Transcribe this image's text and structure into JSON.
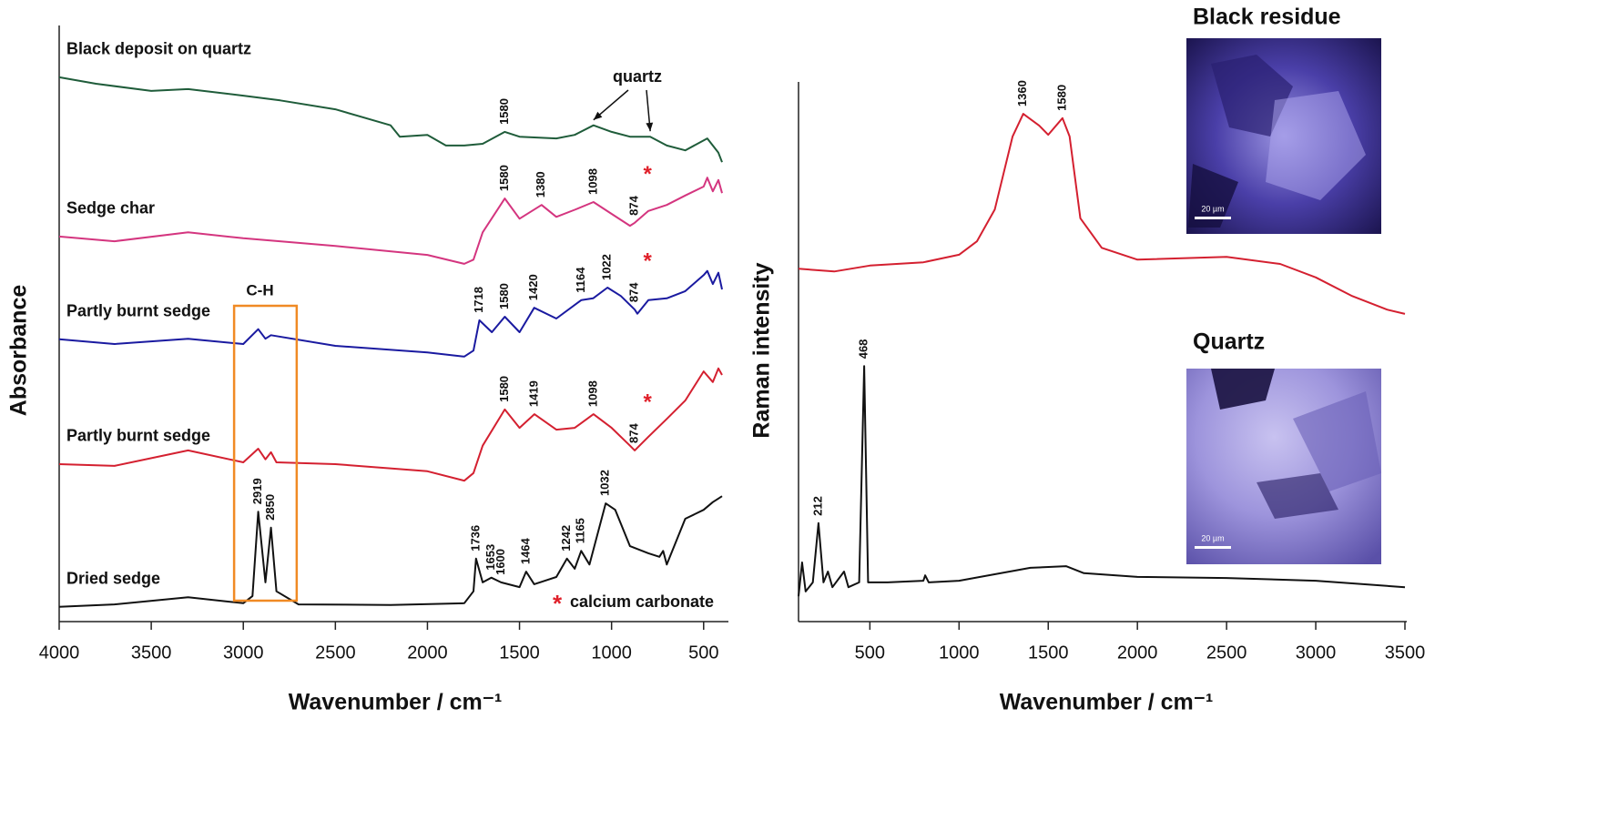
{
  "chart_data": [
    {
      "type": "line",
      "x_label": "Wavenumber / cm⁻¹",
      "y_label": "Absorbance",
      "xlim": [
        4000,
        400
      ],
      "xticks": [
        4000,
        3500,
        3000,
        2500,
        2000,
        1500,
        1000,
        500
      ],
      "ylim": [
        0,
        100
      ],
      "series": [
        {
          "name": "Black deposit on quartz",
          "color": "#1f5c3a",
          "x": [
            4000,
            3800,
            3500,
            3300,
            3000,
            2800,
            2500,
            2200,
            2150,
            2000,
            1900,
            1800,
            1700,
            1580,
            1500,
            1300,
            1200,
            1098,
            1000,
            900,
            790,
            700,
            600,
            480,
            420,
            400
          ],
          "values": [
            91.6,
            90.5,
            89.3,
            89.6,
            88.5,
            87.7,
            86.2,
            83.5,
            81.6,
            81.9,
            80.1,
            80.1,
            80.4,
            82.4,
            81.6,
            81.3,
            81.9,
            83.5,
            82.4,
            81.6,
            81.6,
            80.1,
            79.3,
            81.3,
            78.9,
            77.3
          ],
          "peaks": [
            1580
          ]
        },
        {
          "name": "Sedge char",
          "color": "#d4357f",
          "starred": true,
          "x": [
            4000,
            3700,
            3300,
            3000,
            2500,
            2000,
            1800,
            1750,
            1700,
            1580,
            1500,
            1380,
            1300,
            1200,
            1098,
            1000,
            900,
            874,
            800,
            700,
            600,
            500,
            480,
            450,
            420,
            400
          ],
          "values": [
            64.8,
            64.0,
            65.5,
            64.5,
            63.2,
            61.7,
            60.2,
            60.9,
            65.5,
            71.2,
            67.8,
            70.1,
            68.1,
            69.3,
            70.6,
            68.6,
            66.6,
            67.1,
            69.1,
            70.1,
            71.7,
            73.2,
            74.7,
            72.4,
            74.3,
            72.1
          ],
          "peaks": [
            1580,
            1380,
            1098,
            874
          ]
        },
        {
          "name": "Partly burnt sedge",
          "color": "#1a1aa0",
          "starred": true,
          "x": [
            4000,
            3700,
            3300,
            3000,
            2919,
            2880,
            2850,
            2500,
            2000,
            1800,
            1750,
            1718,
            1650,
            1580,
            1500,
            1420,
            1300,
            1164,
            1100,
            1022,
            950,
            874,
            860,
            800,
            700,
            600,
            500,
            480,
            450,
            420,
            400
          ],
          "values": [
            47.5,
            46.7,
            47.6,
            46.7,
            49.2,
            47.6,
            48.2,
            46.4,
            45.3,
            44.6,
            45.6,
            50.7,
            48.7,
            51.3,
            48.7,
            52.8,
            51.0,
            54.1,
            54.4,
            56.2,
            54.8,
            52.5,
            51.8,
            54.1,
            54.4,
            55.6,
            58.3,
            59.0,
            56.8,
            58.7,
            55.9
          ],
          "peaks": [
            1718,
            1580,
            1420,
            1164,
            1022,
            874
          ]
        },
        {
          "name": "Partly burnt sedge",
          "color": "#d42030",
          "starred": true,
          "x": [
            4000,
            3700,
            3300,
            3000,
            2919,
            2880,
            2850,
            2820,
            2500,
            2000,
            1800,
            1750,
            1700,
            1580,
            1500,
            1419,
            1300,
            1200,
            1098,
            1000,
            900,
            874,
            800,
            700,
            600,
            500,
            450,
            420,
            400
          ],
          "values": [
            26.5,
            26.2,
            28.8,
            26.8,
            29.1,
            27.3,
            28.5,
            26.8,
            26.5,
            25.3,
            23.7,
            25.0,
            29.6,
            35.7,
            32.6,
            34.9,
            32.3,
            32.6,
            34.9,
            32.6,
            29.6,
            28.8,
            31.1,
            34.1,
            37.2,
            42.1,
            40.3,
            42.6,
            41.5
          ],
          "peaks": [
            1580,
            1419,
            1098,
            874
          ]
        },
        {
          "name": "Dried sedge",
          "color": "#111111",
          "x": [
            4000,
            3700,
            3300,
            3000,
            2950,
            2919,
            2880,
            2850,
            2820,
            2700,
            2200,
            1800,
            1750,
            1736,
            1700,
            1653,
            1600,
            1500,
            1464,
            1420,
            1300,
            1242,
            1200,
            1165,
            1120,
            1032,
            980,
            900,
            800,
            740,
            720,
            700,
            600,
            500,
            450,
            420,
            400
          ],
          "values": [
            2.5,
            2.9,
            4.1,
            3.1,
            4.3,
            18.5,
            6.6,
            15.8,
            5.1,
            2.9,
            2.8,
            3.1,
            5.1,
            10.6,
            6.6,
            7.4,
            6.6,
            5.8,
            8.4,
            6.3,
            7.5,
            10.6,
            8.9,
            11.9,
            9.6,
            19.9,
            18.8,
            12.7,
            11.5,
            10.9,
            11.9,
            9.6,
            17.3,
            18.8,
            20.1,
            20.7,
            21.1
          ],
          "peaks": [
            2919,
            2850,
            1736,
            1653,
            1600,
            1464,
            1242,
            1165,
            1032
          ]
        }
      ],
      "annotations": [
        {
          "text": "quartz",
          "points": [
            1098,
            790
          ]
        },
        {
          "text": "C-H",
          "x_range": [
            3050,
            2710
          ]
        }
      ],
      "note": {
        "symbol": "*",
        "text": "calcium carbonate",
        "color": "#e0202a"
      }
    },
    {
      "type": "line",
      "x_label": "Wavenumber / cm⁻¹",
      "y_label": "Raman intensity",
      "xlim": [
        100,
        3500
      ],
      "xticks": [
        500,
        1000,
        1500,
        2000,
        2500,
        3000,
        3500
      ],
      "ylim": [
        0,
        100
      ],
      "scale_bar": "20 µm",
      "series": [
        {
          "name": "Black residue",
          "color": "#d42030",
          "x": [
            100,
            300,
            500,
            800,
            1000,
            1100,
            1200,
            1300,
            1360,
            1450,
            1500,
            1580,
            1620,
            1680,
            1800,
            2000,
            2500,
            2800,
            3000,
            3200,
            3400,
            3500
          ],
          "values": [
            65.6,
            65.1,
            66.2,
            66.8,
            68.2,
            70.7,
            76.6,
            90.2,
            94.4,
            92.2,
            90.5,
            93.6,
            90.2,
            75.0,
            69.5,
            67.3,
            67.8,
            66.5,
            64.0,
            60.6,
            58.0,
            57.2
          ],
          "peaks": [
            1360,
            1580
          ]
        },
        {
          "name": "Quartz",
          "color": "#111111",
          "x": [
            100,
            120,
            140,
            180,
            212,
            240,
            265,
            290,
            355,
            380,
            440,
            468,
            490,
            600,
            800,
            810,
            830,
            1000,
            1400,
            1600,
            1700,
            2000,
            2500,
            3000,
            3500
          ],
          "values": [
            4.7,
            11.0,
            5.6,
            7.3,
            18.3,
            7.3,
            9.3,
            6.4,
            9.3,
            6.4,
            7.3,
            47.5,
            7.3,
            7.3,
            7.6,
            8.6,
            7.3,
            7.6,
            10.0,
            10.3,
            9.0,
            8.3,
            8.1,
            7.6,
            6.4
          ],
          "peaks": [
            468,
            212
          ]
        }
      ]
    }
  ]
}
